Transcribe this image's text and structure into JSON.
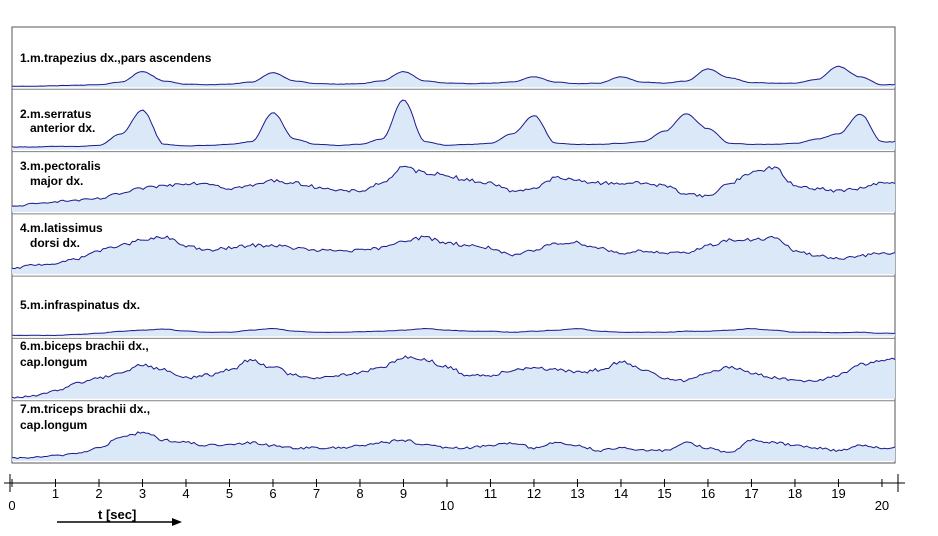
{
  "chart_data": {
    "type": "area",
    "title": "",
    "xlabel": "t [sec]",
    "ylabel": "",
    "xlim": [
      0,
      20.3
    ],
    "grid": false,
    "legend": "none",
    "colors": {
      "line": "#1a1a8c",
      "fill": "#dbe8f7",
      "border": "#555555",
      "separator": "#808080",
      "text": "#000000"
    },
    "x_ticks": [
      0,
      1,
      2,
      3,
      4,
      5,
      6,
      7,
      8,
      9,
      10,
      11,
      12,
      13,
      14,
      15,
      16,
      17,
      18,
      19,
      20
    ],
    "x_tick_labels": [
      "0",
      "1",
      "2",
      "3",
      "4",
      "5",
      "6",
      "7",
      "8",
      "9",
      "10",
      "11",
      "12",
      "13",
      "14",
      "15",
      "16",
      "17",
      "18",
      "19",
      "20"
    ],
    "x": [
      0,
      0.5,
      1,
      1.5,
      2,
      2.5,
      3,
      3.5,
      4,
      4.5,
      5,
      5.5,
      6,
      6.5,
      7,
      7.5,
      8,
      8.5,
      9,
      9.5,
      10,
      10.5,
      11,
      11.5,
      12,
      12.5,
      13,
      13.5,
      14,
      14.5,
      15,
      15.5,
      16,
      16.5,
      17,
      17.5,
      18,
      18.5,
      19,
      19.5,
      20
    ],
    "series": [
      {
        "name": "1.m.trapezius dx.,pars ascendens",
        "label_lines": [
          "1.m.trapezius dx.,pars ascendens"
        ],
        "values": [
          0.02,
          0.02,
          0.03,
          0.04,
          0.05,
          0.1,
          0.3,
          0.12,
          0.06,
          0.05,
          0.06,
          0.1,
          0.28,
          0.12,
          0.07,
          0.06,
          0.07,
          0.12,
          0.3,
          0.12,
          0.08,
          0.07,
          0.08,
          0.1,
          0.2,
          0.1,
          0.07,
          0.08,
          0.2,
          0.1,
          0.08,
          0.12,
          0.35,
          0.18,
          0.09,
          0.08,
          0.08,
          0.15,
          0.4,
          0.2,
          0.05
        ]
      },
      {
        "name": "2.m.serratus anterior dx.",
        "label_lines": [
          "2.m.serratus",
          "anterior dx."
        ],
        "values": [
          0.05,
          0.05,
          0.06,
          0.06,
          0.08,
          0.3,
          0.75,
          0.1,
          0.07,
          0.08,
          0.1,
          0.15,
          0.7,
          0.2,
          0.1,
          0.08,
          0.1,
          0.2,
          0.95,
          0.15,
          0.08,
          0.1,
          0.12,
          0.3,
          0.65,
          0.12,
          0.1,
          0.1,
          0.12,
          0.15,
          0.35,
          0.68,
          0.4,
          0.12,
          0.1,
          0.1,
          0.12,
          0.2,
          0.3,
          0.68,
          0.15
        ]
      },
      {
        "name": "3.m.pectoralis major dx.",
        "label_lines": [
          "3.m.pectoralis",
          "major dx."
        ],
        "values": [
          0.1,
          0.15,
          0.2,
          0.22,
          0.25,
          0.35,
          0.45,
          0.5,
          0.55,
          0.55,
          0.45,
          0.5,
          0.6,
          0.55,
          0.48,
          0.4,
          0.4,
          0.55,
          0.85,
          0.75,
          0.7,
          0.6,
          0.55,
          0.4,
          0.45,
          0.65,
          0.6,
          0.55,
          0.55,
          0.55,
          0.5,
          0.35,
          0.3,
          0.55,
          0.75,
          0.85,
          0.5,
          0.45,
          0.4,
          0.45,
          0.55
        ]
      },
      {
        "name": "4.m.latissimus dorsi dx.",
        "label_lines": [
          "4.m.latissimus",
          "dorsi dx."
        ],
        "values": [
          0.1,
          0.18,
          0.2,
          0.3,
          0.45,
          0.55,
          0.65,
          0.7,
          0.55,
          0.45,
          0.5,
          0.55,
          0.55,
          0.5,
          0.45,
          0.45,
          0.45,
          0.5,
          0.65,
          0.7,
          0.6,
          0.55,
          0.5,
          0.35,
          0.45,
          0.6,
          0.6,
          0.5,
          0.4,
          0.45,
          0.4,
          0.4,
          0.55,
          0.65,
          0.65,
          0.7,
          0.45,
          0.35,
          0.3,
          0.35,
          0.4
        ]
      },
      {
        "name": "5.m.infraspinatus dx.",
        "label_lines": [
          "5.m.infraspinatus dx."
        ],
        "values": [
          0.02,
          0.02,
          0.02,
          0.04,
          0.06,
          0.1,
          0.12,
          0.14,
          0.1,
          0.08,
          0.08,
          0.12,
          0.15,
          0.1,
          0.08,
          0.08,
          0.09,
          0.1,
          0.12,
          0.15,
          0.12,
          0.1,
          0.1,
          0.08,
          0.1,
          0.12,
          0.15,
          0.1,
          0.08,
          0.08,
          0.08,
          0.1,
          0.1,
          0.12,
          0.15,
          0.12,
          0.08,
          0.08,
          0.07,
          0.08,
          0.06
        ]
      },
      {
        "name": "6.m.biceps brachii dx., cap.longum",
        "label_lines": [
          "6.m.biceps brachii dx.,",
          "cap.longum"
        ],
        "values": [
          0.02,
          0.05,
          0.15,
          0.3,
          0.4,
          0.5,
          0.65,
          0.55,
          0.4,
          0.45,
          0.55,
          0.75,
          0.6,
          0.45,
          0.4,
          0.45,
          0.5,
          0.6,
          0.8,
          0.75,
          0.6,
          0.45,
          0.45,
          0.55,
          0.6,
          0.55,
          0.5,
          0.55,
          0.7,
          0.55,
          0.4,
          0.35,
          0.5,
          0.6,
          0.5,
          0.4,
          0.35,
          0.35,
          0.45,
          0.65,
          0.75
        ]
      },
      {
        "name": "7.m.triceps brachii dx., cap.longum",
        "label_lines": [
          "7.m.triceps brachii dx.,",
          "cap.longum"
        ],
        "values": [
          0.05,
          0.07,
          0.1,
          0.15,
          0.25,
          0.45,
          0.55,
          0.4,
          0.35,
          0.3,
          0.3,
          0.35,
          0.3,
          0.25,
          0.25,
          0.25,
          0.3,
          0.35,
          0.4,
          0.3,
          0.25,
          0.25,
          0.3,
          0.35,
          0.25,
          0.35,
          0.3,
          0.2,
          0.25,
          0.2,
          0.2,
          0.35,
          0.25,
          0.15,
          0.4,
          0.35,
          0.3,
          0.25,
          0.2,
          0.3,
          0.25
        ]
      }
    ]
  }
}
